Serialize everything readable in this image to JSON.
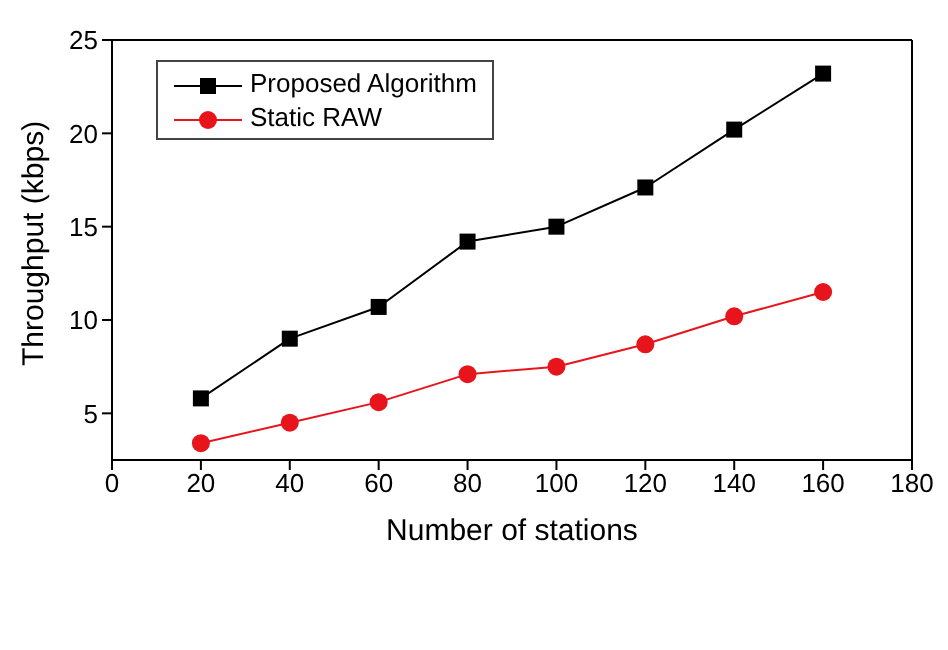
{
  "chart_data": {
    "type": "line",
    "xlabel": "Number of stations",
    "ylabel": "Throughput (kbps)",
    "x": [
      20,
      40,
      60,
      80,
      100,
      120,
      140,
      160
    ],
    "series": [
      {
        "name": "Proposed Algorithm",
        "color": "#000000",
        "marker": "square",
        "values": [
          5.8,
          9.0,
          10.7,
          14.2,
          15.0,
          17.1,
          20.2,
          23.2
        ]
      },
      {
        "name": "Static RAW",
        "color": "#e8141c",
        "marker": "circle",
        "values": [
          3.4,
          4.5,
          5.6,
          7.1,
          7.5,
          8.7,
          10.2,
          11.5
        ]
      }
    ],
    "xlim": [
      0,
      180
    ],
    "xticks": [
      0,
      20,
      40,
      60,
      80,
      100,
      120,
      140,
      160,
      180
    ],
    "ylim": [
      2.5,
      25
    ],
    "yticks": [
      5,
      10,
      15,
      20,
      25
    ],
    "grid": false,
    "legend": "top left"
  }
}
